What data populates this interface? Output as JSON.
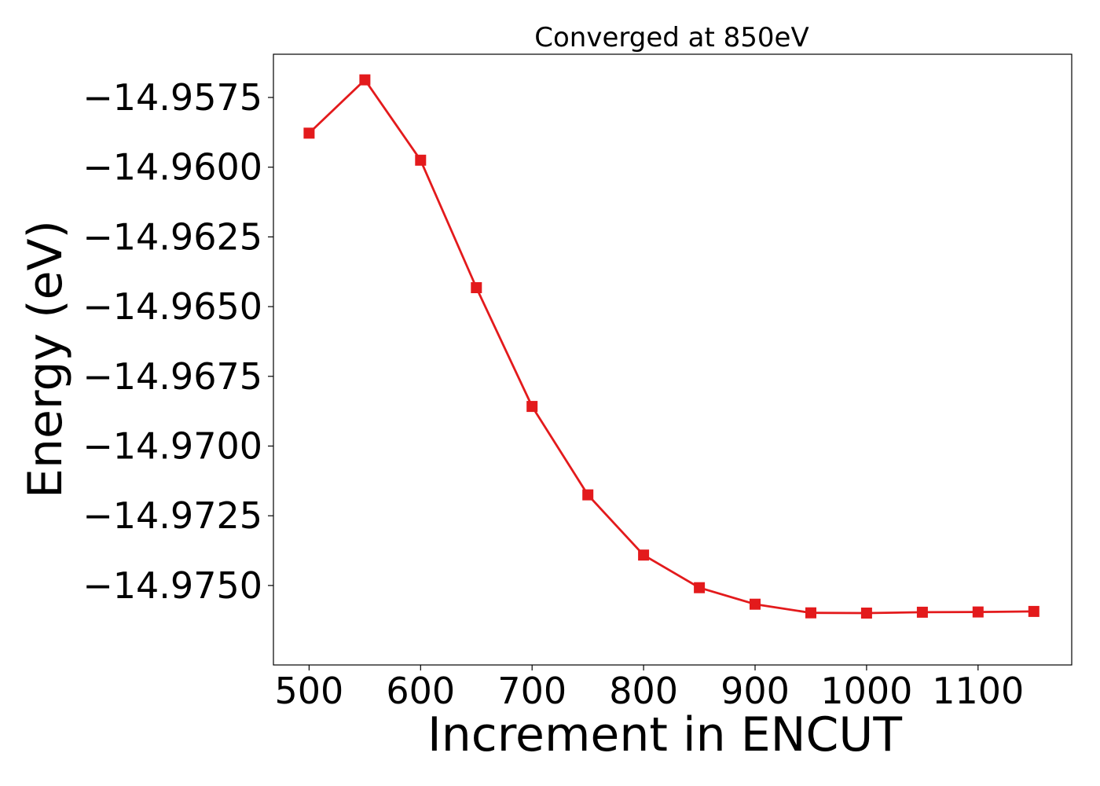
{
  "chart_data": {
    "type": "line",
    "title": "Converged at 850eV",
    "xlabel": "Increment in ENCUT",
    "ylabel": "Energy (eV)",
    "x": [
      500,
      550,
      600,
      650,
      700,
      750,
      800,
      850,
      900,
      950,
      1000,
      1050,
      1100,
      1150
    ],
    "series": [
      {
        "values": [
          -14.95878,
          -14.95687,
          -14.95975,
          -14.96432,
          -14.96858,
          -14.97175,
          -14.97391,
          -14.97508,
          -14.97567,
          -14.97598,
          -14.97599,
          -14.97596,
          -14.97595,
          -14.97593
        ],
        "color": "#e31a1c",
        "marker": "square"
      }
    ],
    "xlim": [
      468,
      1184
    ],
    "ylim": [
      -14.97785,
      -14.95595
    ],
    "xticks": [
      500,
      600,
      700,
      800,
      900,
      1000,
      1100
    ],
    "xtick_labels": [
      "500",
      "600",
      "700",
      "800",
      "900",
      "1000",
      "1100"
    ],
    "yticks": [
      -14.9575,
      -14.96,
      -14.9625,
      -14.965,
      -14.9675,
      -14.97,
      -14.9725,
      -14.975
    ],
    "ytick_labels": [
      "−14.9575",
      "−14.9600",
      "−14.9625",
      "−14.9650",
      "−14.9675",
      "−14.9700",
      "−14.9725",
      "−14.9750"
    ],
    "grid": false,
    "legend": "none"
  }
}
